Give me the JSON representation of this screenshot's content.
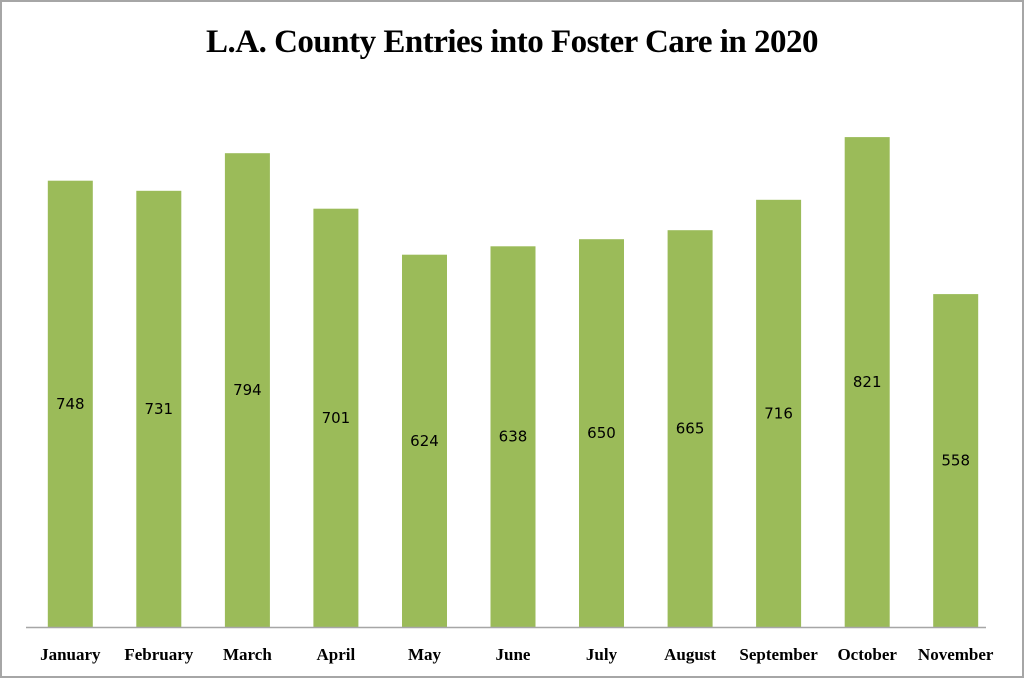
{
  "chart_data": {
    "type": "bar",
    "title": "L.A. County Entries into Foster Care in 2020",
    "xlabel": "",
    "ylabel": "",
    "categories": [
      "January",
      "February",
      "March",
      "April",
      "May",
      "June",
      "July",
      "August",
      "September",
      "October",
      "November"
    ],
    "values": [
      748,
      731,
      794,
      701,
      624,
      638,
      650,
      665,
      716,
      821,
      558
    ],
    "ylim": [
      0,
      900
    ],
    "grid": false,
    "legend": "none",
    "bar_color": "#9bbb59",
    "axis_color": "#a6a6a6",
    "data_labels": true
  }
}
